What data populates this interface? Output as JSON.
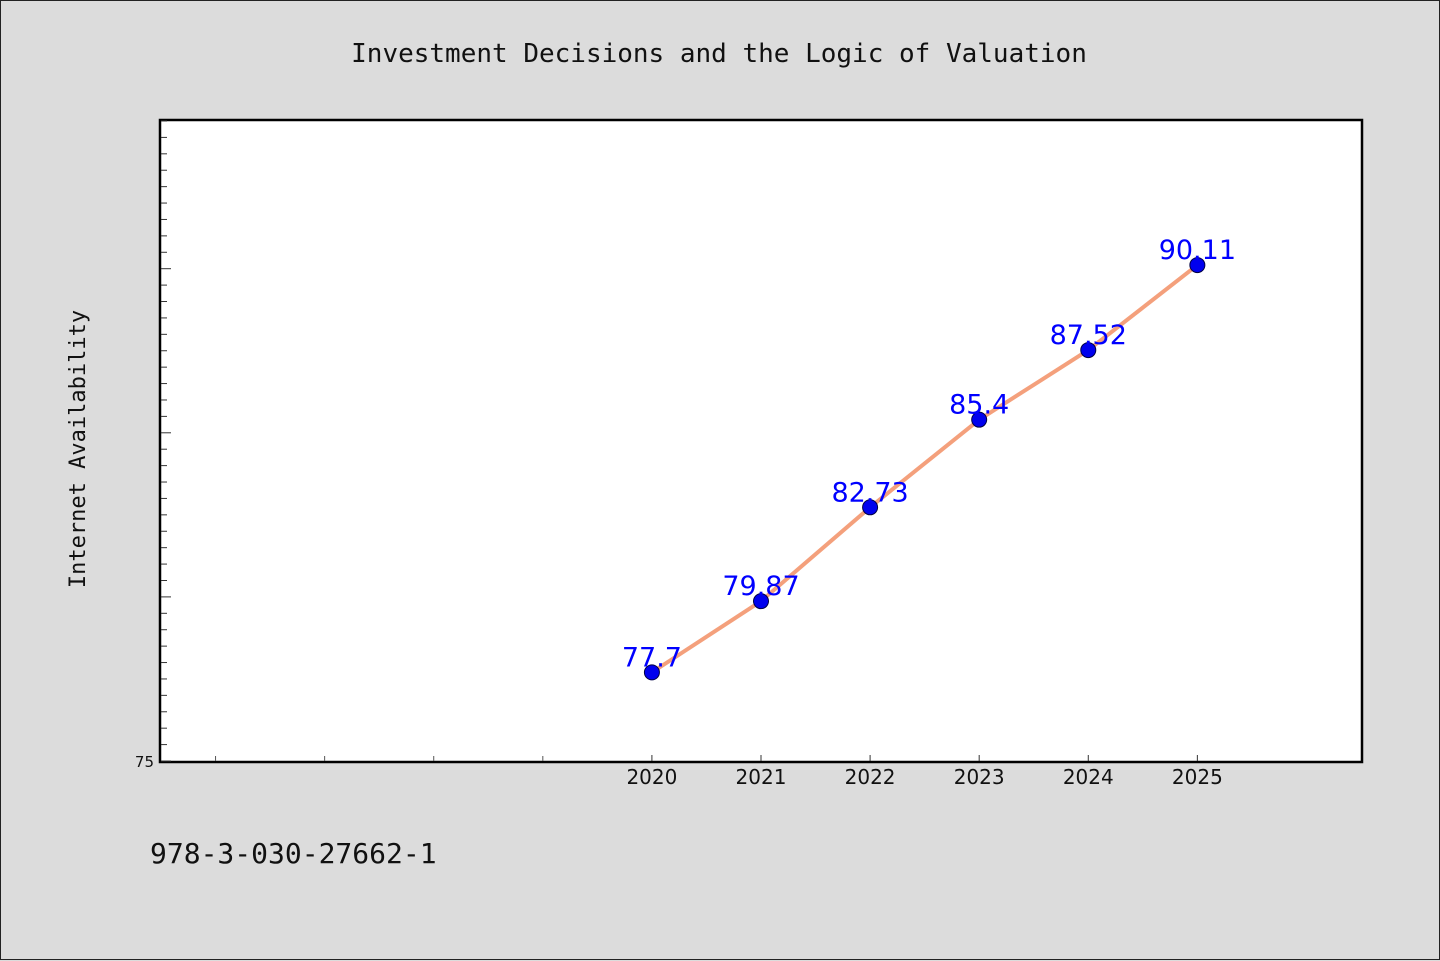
{
  "chart_data": {
    "type": "line",
    "title": "Investment Decisions and the Logic of Valuation",
    "ylabel": "Internet Availability",
    "xlabel": "",
    "x": [
      2020,
      2021,
      2022,
      2023,
      2024,
      2025
    ],
    "x_tick_labels": [
      "2020",
      "2021",
      "2022",
      "2023",
      "2024",
      "2025"
    ],
    "xlim": [
      2015.5,
      2026.5
    ],
    "ylim": [
      75,
      94.5
    ],
    "y_tick_labels": [
      "75"
    ],
    "series": [
      {
        "values": [
          77.7,
          79.87,
          82.73,
          85.4,
          87.52,
          90.11
        ],
        "data_labels": [
          "77.7",
          "79.87",
          "82.73",
          "85.4",
          "87.52",
          "90.11"
        ],
        "line_color": "#f4a07c",
        "marker_color": "#0000ee"
      }
    ],
    "label_color": "#0000ff",
    "grid": false,
    "legend": "none"
  },
  "footer": {
    "isbn": "978-3-030-27662-1"
  }
}
